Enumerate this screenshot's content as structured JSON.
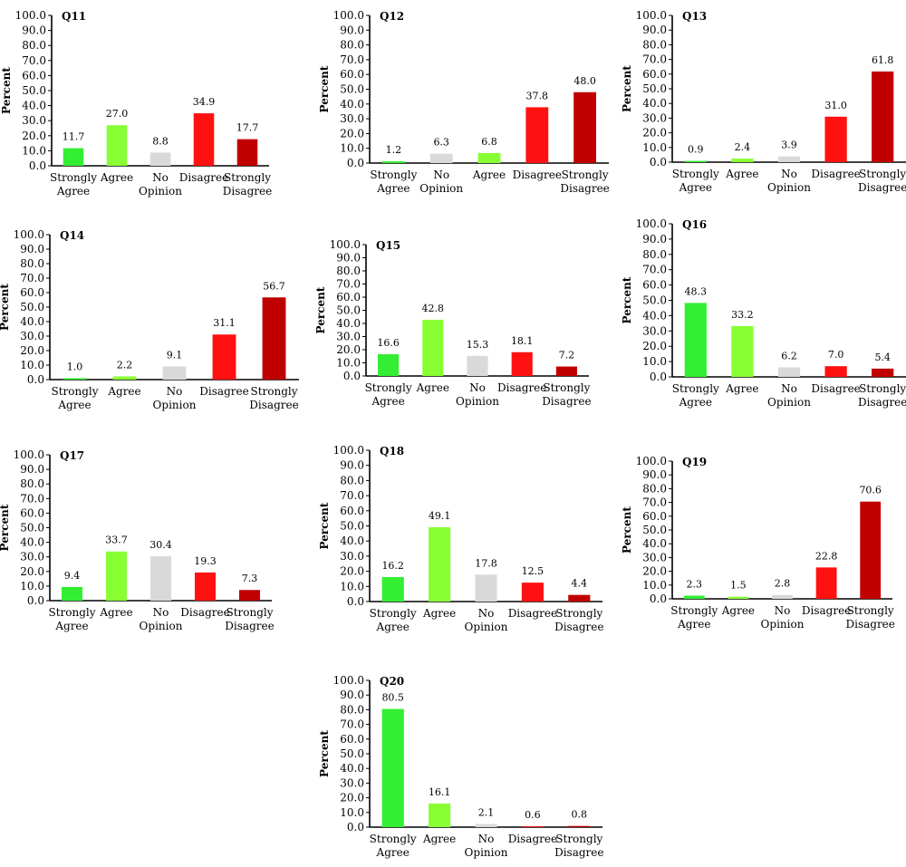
{
  "colors": {
    "strongly_agree": "#33ee33",
    "agree": "#88ff33",
    "no_opinion": "#d9d9d9",
    "disagree": "#ff1111",
    "strongly_disagree": "#c00000"
  },
  "chart_data": [
    {
      "type": "bar",
      "title": "Q11",
      "ylabel": "Percent",
      "ylim": [
        0,
        100
      ],
      "yticks": [
        "0.0",
        "10.0",
        "20.0",
        "30.0",
        "40.0",
        "50.0",
        "60.0",
        "70.0",
        "80.0",
        "90.0",
        "100.0"
      ],
      "categories": [
        "Strongly\nAgree",
        "Agree",
        "No\nOpinion",
        "Disagree",
        "Strongly\nDisagree"
      ],
      "color_keys": [
        "strongly_agree",
        "agree",
        "no_opinion",
        "disagree",
        "strongly_disagree"
      ],
      "values": [
        11.7,
        27.0,
        8.8,
        34.9,
        17.7
      ],
      "labels": [
        "11.7",
        "27.0",
        "8.8",
        "34.9",
        "17.7"
      ]
    },
    {
      "type": "bar",
      "title": "Q12",
      "ylabel": "Percent",
      "ylim": [
        0,
        100
      ],
      "yticks": [
        "0.0",
        "10.0",
        "20.0",
        "30.0",
        "40.0",
        "50.0",
        "60.0",
        "70.0",
        "80.0",
        "90.0",
        "100.0"
      ],
      "categories": [
        "Strongly\nAgree",
        "No\nOpinion",
        "Agree",
        "Disagree",
        "Strongly\nDisagree"
      ],
      "color_keys": [
        "strongly_agree",
        "no_opinion",
        "agree",
        "disagree",
        "strongly_disagree"
      ],
      "values": [
        1.2,
        6.3,
        6.8,
        37.8,
        48.0
      ],
      "labels": [
        "1.2",
        "6.3",
        "6.8",
        "37.8",
        "48.0"
      ]
    },
    {
      "type": "bar",
      "title": "Q13",
      "ylabel": "Percent",
      "ylim": [
        0,
        100
      ],
      "yticks": [
        "0.0",
        "10.0",
        "20.0",
        "30.0",
        "40.0",
        "50.0",
        "60.0",
        "70.0",
        "80.0",
        "90.0",
        "100.0"
      ],
      "categories": [
        "Strongly\nAgree",
        "Agree",
        "No\nOpinion",
        "Disagree",
        "Strongly\nDisagree"
      ],
      "color_keys": [
        "strongly_agree",
        "agree",
        "no_opinion",
        "disagree",
        "strongly_disagree"
      ],
      "values": [
        0.9,
        2.4,
        3.9,
        31.0,
        61.8
      ],
      "labels": [
        "0.9",
        "2.4",
        "3.9",
        "31.0",
        "61.8"
      ]
    },
    {
      "type": "bar",
      "title": "Q14",
      "ylabel": "Percent",
      "ylim": [
        0,
        100
      ],
      "yticks": [
        "0.0",
        "10.0",
        "20.0",
        "30.0",
        "40.0",
        "50.0",
        "60.0",
        "70.0",
        "80.0",
        "90.0",
        "100.0"
      ],
      "categories": [
        "Strongly\nAgree",
        "Agree",
        "No\nOpinion",
        "Disagree",
        "Strongly\nDisagree"
      ],
      "color_keys": [
        "strongly_agree",
        "agree",
        "no_opinion",
        "disagree",
        "strongly_disagree"
      ],
      "values": [
        1.0,
        2.2,
        9.1,
        31.1,
        56.7
      ],
      "labels": [
        "1.0",
        "2.2",
        "9.1",
        "31.1",
        "56.7"
      ]
    },
    {
      "type": "bar",
      "title": "Q15",
      "ylabel": "Percent",
      "ylim": [
        0,
        100
      ],
      "yticks": [
        "0.0",
        "10.0",
        "20.0",
        "30.0",
        "40.0",
        "50.0",
        "60.0",
        "70.0",
        "80.0",
        "90.0",
        "100.0"
      ],
      "categories": [
        "Strongly\nAgree",
        "Agree",
        "No\nOpinion",
        "Disagree",
        "Strongly\nDisagree"
      ],
      "color_keys": [
        "strongly_agree",
        "agree",
        "no_opinion",
        "disagree",
        "strongly_disagree"
      ],
      "values": [
        16.6,
        42.8,
        15.3,
        18.1,
        7.2
      ],
      "labels": [
        "16.6",
        "42.8",
        "15.3",
        "18.1",
        "7.2"
      ]
    },
    {
      "type": "bar",
      "title": "Q16",
      "ylabel": "Percent",
      "ylim": [
        0,
        100
      ],
      "yticks": [
        "0.0",
        "10.0",
        "20.0",
        "30.0",
        "40.0",
        "50.0",
        "60.0",
        "70.0",
        "80.0",
        "90.0",
        "100.0"
      ],
      "categories": [
        "Strongly\nAgree",
        "Agree",
        "No\nOpinion",
        "Disagree",
        "Strongly\nDisagree"
      ],
      "color_keys": [
        "strongly_agree",
        "agree",
        "no_opinion",
        "disagree",
        "strongly_disagree"
      ],
      "values": [
        48.3,
        33.2,
        6.2,
        7.0,
        5.4
      ],
      "labels": [
        "48.3",
        "33.2",
        "6.2",
        "7.0",
        "5.4"
      ]
    },
    {
      "type": "bar",
      "title": "Q17",
      "ylabel": "Percent",
      "ylim": [
        0,
        100
      ],
      "yticks": [
        "0.0",
        "10.0",
        "20.0",
        "30.0",
        "40.0",
        "50.0",
        "60.0",
        "70.0",
        "80.0",
        "90.0",
        "100.0"
      ],
      "categories": [
        "Strongly\nAgree",
        "Agree",
        "No\nOpinion",
        "Disagree",
        "Strongly\nDisagree"
      ],
      "color_keys": [
        "strongly_agree",
        "agree",
        "no_opinion",
        "disagree",
        "strongly_disagree"
      ],
      "values": [
        9.4,
        33.7,
        30.4,
        19.3,
        7.3
      ],
      "labels": [
        "9.4",
        "33.7",
        "30.4",
        "19.3",
        "7.3"
      ]
    },
    {
      "type": "bar",
      "title": "Q18",
      "ylabel": "Percent",
      "ylim": [
        0,
        100
      ],
      "yticks": [
        "0.0",
        "10.0",
        "20.0",
        "30.0",
        "40.0",
        "50.0",
        "60.0",
        "70.0",
        "80.0",
        "90.0",
        "100.0"
      ],
      "categories": [
        "Strongly\nAgree",
        "Agree",
        "No\nOpinion",
        "Disagree",
        "Strongly\nDisagree"
      ],
      "color_keys": [
        "strongly_agree",
        "agree",
        "no_opinion",
        "disagree",
        "strongly_disagree"
      ],
      "values": [
        16.2,
        49.1,
        17.8,
        12.5,
        4.4
      ],
      "labels": [
        "16.2",
        "49.1",
        "17.8",
        "12.5",
        "4.4"
      ]
    },
    {
      "type": "bar",
      "title": "Q19",
      "ylabel": "Percent",
      "ylim": [
        0,
        100
      ],
      "yticks": [
        "0.0",
        "10.0",
        "20.0",
        "30.0",
        "40.0",
        "50.0",
        "60.0",
        "70.0",
        "80.0",
        "90.0",
        "100.0"
      ],
      "categories": [
        "Strongly\nAgree",
        "Agree",
        "No\nOpinion",
        "Disagree",
        "Strongly\nDisagree"
      ],
      "color_keys": [
        "strongly_agree",
        "agree",
        "no_opinion",
        "disagree",
        "strongly_disagree"
      ],
      "values": [
        2.3,
        1.5,
        2.8,
        22.8,
        70.6
      ],
      "labels": [
        "2.3",
        "1.5",
        "2.8",
        "22.8",
        "70.6"
      ]
    },
    {
      "type": "bar",
      "title": "Q20",
      "ylabel": "Percent",
      "ylim": [
        0,
        100
      ],
      "yticks": [
        "0.0",
        "10.0",
        "20.0",
        "30.0",
        "40.0",
        "50.0",
        "60.0",
        "70.0",
        "80.0",
        "90.0",
        "100.0"
      ],
      "categories": [
        "Strongly\nAgree",
        "Agree",
        "No\nOpinion",
        "Disagree",
        "Strongly\nDisagree"
      ],
      "color_keys": [
        "strongly_agree",
        "agree",
        "no_opinion",
        "disagree",
        "strongly_disagree"
      ],
      "values": [
        80.5,
        16.1,
        2.1,
        0.6,
        0.8
      ],
      "labels": [
        "80.5",
        "16.1",
        "2.1",
        "0.6",
        "0.8"
      ]
    }
  ]
}
